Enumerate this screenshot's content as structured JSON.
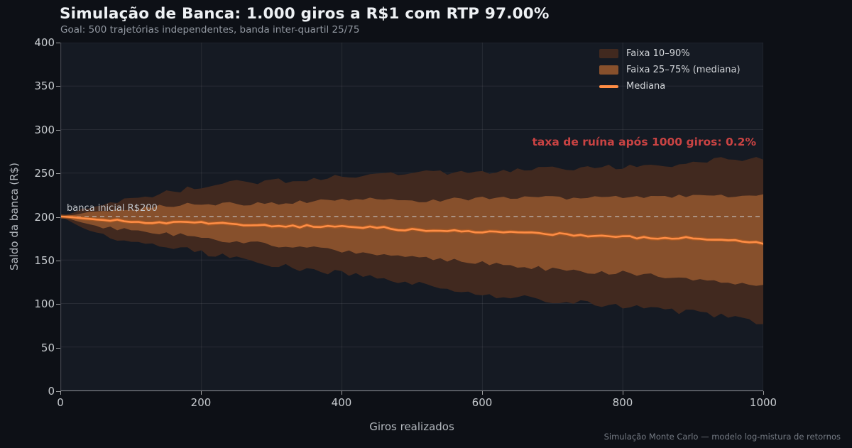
{
  "header": {
    "title": "Simulação de Banca: 1.000 giros a R$1 com RTP 97.00%",
    "subtitle": "Goal: 500 trajetórias independentes, banda inter-quartil 25/75"
  },
  "annotations": {
    "ruin_text": "taxa de ruína após 1000 giros: 0.2%",
    "initial_bankroll_text": "banca inicial R$200"
  },
  "footer": {
    "note": "Simulação Monte Carlo — modelo log-mistura de retornos"
  },
  "colors": {
    "background": "#0d1016",
    "plot_background": "#151a23",
    "band_10_90": "#41291f",
    "band_25_75": "#87502c",
    "median": "#ff8d45",
    "median_glow": "#b05a20",
    "reference_line": "#cfd3d8",
    "ruin_text": "#c94343",
    "grid": "rgba(255,255,255,0.08)"
  },
  "chart_data": {
    "type": "area",
    "title": "Simulação de Banca: 1.000 giros a R$1 com RTP 97.00%",
    "xlabel": "Giros realizados",
    "ylabel": "Saldo da banca (R$)",
    "xlim": [
      0,
      1000
    ],
    "ylim": [
      0,
      400
    ],
    "xticks": [
      0,
      200,
      400,
      600,
      800,
      1000
    ],
    "yticks": [
      0,
      50,
      100,
      150,
      200,
      250,
      300,
      350,
      400
    ],
    "grid": true,
    "legend_position": "upper right",
    "legend": [
      "Faixa 10–90%",
      "Faixa 25–75% (mediana)",
      "Mediana"
    ],
    "reference_line": {
      "y": 200,
      "label": "banca inicial R$200"
    },
    "x": [
      0,
      50,
      100,
      150,
      200,
      250,
      300,
      350,
      400,
      450,
      500,
      550,
      600,
      650,
      700,
      750,
      800,
      850,
      900,
      950,
      1000
    ],
    "series": [
      {
        "name": "p90",
        "values": [
          200,
          213,
          221,
          228,
          235,
          238,
          241,
          243,
          246,
          248,
          249,
          250,
          252,
          253,
          254,
          256,
          257,
          259,
          262,
          265,
          268
        ]
      },
      {
        "name": "p75",
        "values": [
          200,
          206,
          209,
          212,
          214,
          215,
          216,
          217,
          218,
          219,
          219,
          220,
          221,
          221,
          222,
          222,
          222,
          223,
          223,
          224,
          225
        ]
      },
      {
        "name": "p50",
        "values": [
          200,
          197,
          195,
          193,
          192,
          191,
          190,
          189,
          188,
          187,
          185,
          184,
          183,
          181,
          180,
          178,
          177,
          175,
          174,
          172,
          171
        ]
      },
      {
        "name": "p25",
        "values": [
          200,
          189,
          184,
          180,
          176,
          172,
          168,
          164,
          160,
          157,
          153,
          150,
          146,
          143,
          140,
          137,
          135,
          131,
          128,
          124,
          121
        ]
      },
      {
        "name": "p10",
        "values": [
          200,
          180,
          172,
          165,
          158,
          152,
          146,
          140,
          135,
          129,
          123,
          117,
          111,
          107,
          103,
          100,
          97,
          93,
          89,
          84,
          79
        ]
      }
    ],
    "bands": [
      {
        "upper": "p90",
        "lower": "p10",
        "label": "Faixa 10–90%"
      },
      {
        "upper": "p75",
        "lower": "p25",
        "label": "Faixa 25–75% (mediana)"
      }
    ],
    "median_series": "p50"
  }
}
